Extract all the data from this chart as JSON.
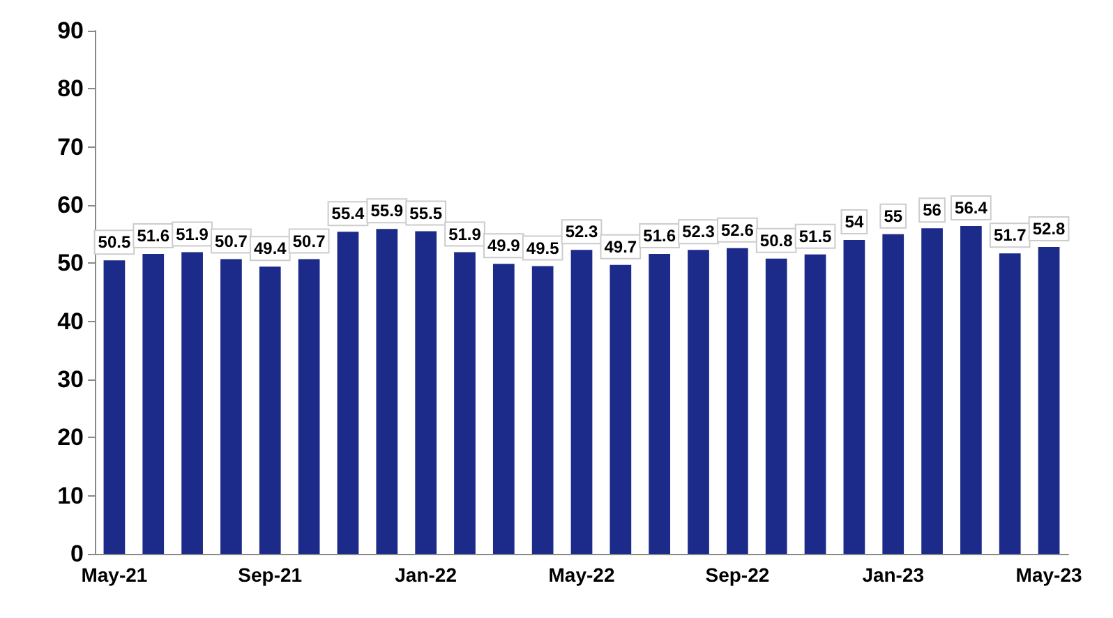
{
  "chart_data": {
    "type": "bar",
    "categories": [
      "May-21",
      null,
      null,
      null,
      "Sep-21",
      null,
      null,
      null,
      "Jan-22",
      null,
      null,
      null,
      "May-22",
      null,
      null,
      null,
      "Sep-22",
      null,
      null,
      null,
      "Jan-23",
      null,
      null,
      null,
      "May-23"
    ],
    "values": [
      50.5,
      51.6,
      51.9,
      50.7,
      49.4,
      50.7,
      55.4,
      55.9,
      55.5,
      51.9,
      49.9,
      49.5,
      52.3,
      49.7,
      51.6,
      52.3,
      52.6,
      50.8,
      51.5,
      54.0,
      55.0,
      56.0,
      56.4,
      51.7,
      52.8
    ],
    "color": "#1c2a8a",
    "ylim": [
      0,
      90
    ],
    "yticks": [
      0,
      10,
      20,
      30,
      40,
      50,
      60,
      70,
      80,
      90
    ],
    "grid": false,
    "data_labels": true
  }
}
